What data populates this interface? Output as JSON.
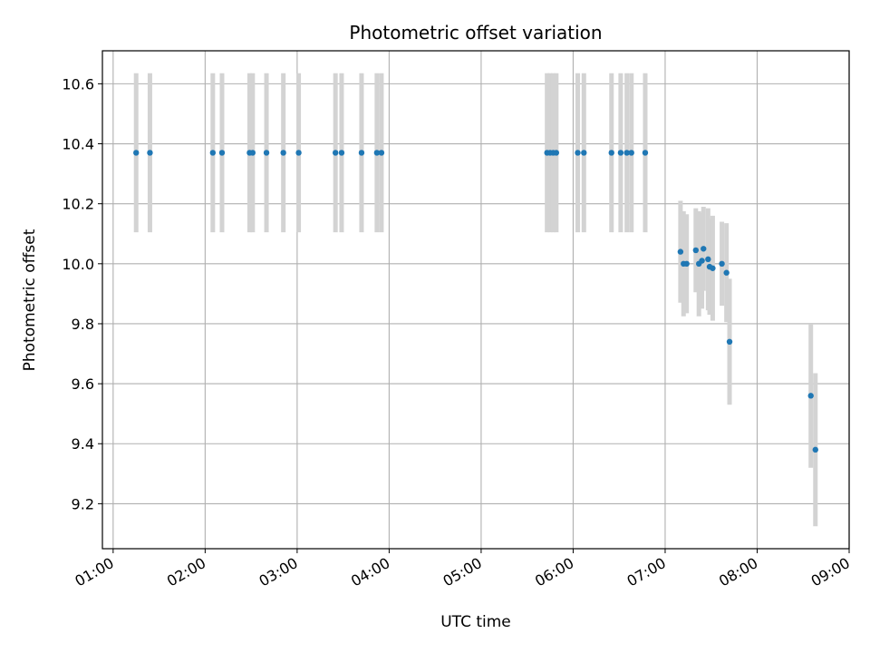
{
  "chart_data": {
    "type": "scatter",
    "title": "Photometric offset variation",
    "xlabel": "UTC time",
    "ylabel": "Photometric offset",
    "x_ticks": [
      "01:00",
      "02:00",
      "03:00",
      "04:00",
      "05:00",
      "06:00",
      "07:00",
      "08:00",
      "09:00"
    ],
    "y_ticks": [
      "9.2",
      "9.4",
      "9.6",
      "9.8",
      "10.0",
      "10.2",
      "10.4",
      "10.6"
    ],
    "xlim": [
      "00:53",
      "09:00"
    ],
    "ylim": [
      9.05,
      10.71
    ],
    "grid": true,
    "marker_color": "#1f77b4",
    "errorbar_color": "#d3d3d3",
    "points": [
      {
        "x": "01:15",
        "y": 10.37,
        "err": 0.265
      },
      {
        "x": "01:24",
        "y": 10.37,
        "err": 0.265
      },
      {
        "x": "02:05",
        "y": 10.37,
        "err": 0.265
      },
      {
        "x": "02:11",
        "y": 10.37,
        "err": 0.265
      },
      {
        "x": "02:29",
        "y": 10.37,
        "err": 0.265
      },
      {
        "x": "02:31",
        "y": 10.37,
        "err": 0.265
      },
      {
        "x": "02:40",
        "y": 10.37,
        "err": 0.265
      },
      {
        "x": "02:51",
        "y": 10.37,
        "err": 0.265
      },
      {
        "x": "03:01",
        "y": 10.37,
        "err": 0.265
      },
      {
        "x": "03:25",
        "y": 10.37,
        "err": 0.265
      },
      {
        "x": "03:29",
        "y": 10.37,
        "err": 0.265
      },
      {
        "x": "03:42",
        "y": 10.37,
        "err": 0.265
      },
      {
        "x": "03:52",
        "y": 10.37,
        "err": 0.265
      },
      {
        "x": "03:55",
        "y": 10.37,
        "err": 0.265
      },
      {
        "x": "05:43",
        "y": 10.37,
        "err": 0.265
      },
      {
        "x": "05:45",
        "y": 10.37,
        "err": 0.265
      },
      {
        "x": "05:47",
        "y": 10.37,
        "err": 0.265
      },
      {
        "x": "05:49",
        "y": 10.37,
        "err": 0.265
      },
      {
        "x": "06:03",
        "y": 10.37,
        "err": 0.265
      },
      {
        "x": "06:07",
        "y": 10.37,
        "err": 0.265
      },
      {
        "x": "06:25",
        "y": 10.37,
        "err": 0.265
      },
      {
        "x": "06:31",
        "y": 10.37,
        "err": 0.265
      },
      {
        "x": "06:35",
        "y": 10.37,
        "err": 0.265
      },
      {
        "x": "06:38",
        "y": 10.37,
        "err": 0.265
      },
      {
        "x": "06:47",
        "y": 10.37,
        "err": 0.265
      },
      {
        "x": "07:10",
        "y": 10.04,
        "err": 0.17
      },
      {
        "x": "07:12",
        "y": 10.0,
        "err": 0.175
      },
      {
        "x": "07:14",
        "y": 10.0,
        "err": 0.165
      },
      {
        "x": "07:20",
        "y": 10.045,
        "err": 0.14
      },
      {
        "x": "07:22",
        "y": 10.0,
        "err": 0.175
      },
      {
        "x": "07:24",
        "y": 10.01,
        "err": 0.16
      },
      {
        "x": "07:25",
        "y": 10.05,
        "err": 0.14
      },
      {
        "x": "07:28",
        "y": 10.015,
        "err": 0.17
      },
      {
        "x": "07:29",
        "y": 9.99,
        "err": 0.16
      },
      {
        "x": "07:31",
        "y": 9.985,
        "err": 0.175
      },
      {
        "x": "07:37",
        "y": 10.0,
        "err": 0.14
      },
      {
        "x": "07:40",
        "y": 9.97,
        "err": 0.165
      },
      {
        "x": "07:42",
        "y": 9.74,
        "err": 0.21
      },
      {
        "x": "08:35",
        "y": 9.56,
        "err": 0.24
      },
      {
        "x": "08:38",
        "y": 9.38,
        "err": 0.255
      }
    ]
  }
}
